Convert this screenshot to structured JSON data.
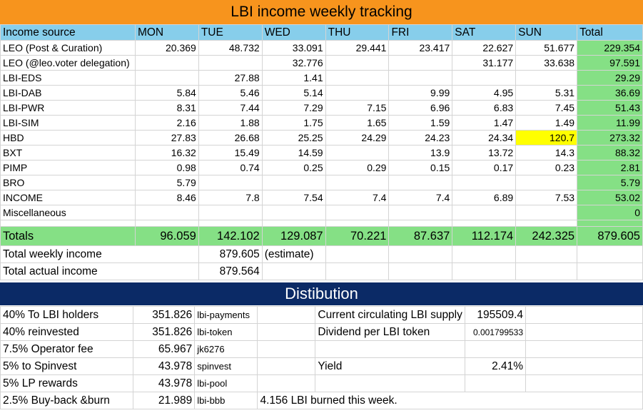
{
  "title": "LBI income weekly tracking",
  "header": [
    "Income source",
    "MON",
    "TUE",
    "WED",
    "THU",
    "FRI",
    "SAT",
    "SUN",
    "Total"
  ],
  "rows": [
    {
      "source": "LEO (Post & Curation)",
      "cells": [
        "20.369",
        "48.732",
        "33.091",
        "29.441",
        "23.417",
        "22.627",
        "51.677"
      ],
      "total": "229.354"
    },
    {
      "source": "LEO (@leo.voter delegation)",
      "cells": [
        "",
        "",
        "32.776",
        "",
        "",
        "31.177",
        "33.638"
      ],
      "total": "97.591"
    },
    {
      "source": "LBI-EDS",
      "cells": [
        "",
        "27.88",
        "1.41",
        "",
        "",
        "",
        ""
      ],
      "total": "29.29"
    },
    {
      "source": "LBI-DAB",
      "cells": [
        "5.84",
        "5.46",
        "5.14",
        "",
        "9.99",
        "4.95",
        "5.31"
      ],
      "total": "36.69"
    },
    {
      "source": "LBI-PWR",
      "cells": [
        "8.31",
        "7.44",
        "7.29",
        "7.15",
        "6.96",
        "6.83",
        "7.45"
      ],
      "total": "51.43"
    },
    {
      "source": "LBI-SIM",
      "cells": [
        "2.16",
        "1.88",
        "1.75",
        "1.65",
        "1.59",
        "1.47",
        "1.49"
      ],
      "total": "11.99"
    },
    {
      "source": "HBD",
      "cells": [
        "27.83",
        "26.68",
        "25.25",
        "24.29",
        "24.23",
        "24.34",
        "120.7"
      ],
      "total": "273.32",
      "highlight_col": 6,
      "highlight_color": "#ffff00"
    },
    {
      "source": "BXT",
      "cells": [
        "16.32",
        "15.49",
        "14.59",
        "",
        "13.9",
        "13.72",
        "14.3"
      ],
      "total": "88.32"
    },
    {
      "source": "PIMP",
      "cells": [
        "0.98",
        "0.74",
        "0.25",
        "0.29",
        "0.15",
        "0.17",
        "0.23"
      ],
      "total": "2.81"
    },
    {
      "source": "BRO",
      "cells": [
        "5.79",
        "",
        "",
        "",
        "",
        "",
        ""
      ],
      "total": "5.79"
    },
    {
      "source": "INCOME",
      "cells": [
        "8.46",
        "7.8",
        "7.54",
        "7.4",
        "7.4",
        "6.89",
        "7.53"
      ],
      "total": "53.02"
    },
    {
      "source": "Miscellaneous",
      "cells": [
        "",
        "",
        "",
        "",
        "",
        "",
        ""
      ],
      "total": "0"
    }
  ],
  "totals": {
    "label": "Totals",
    "cells": [
      "96.059",
      "142.102",
      "129.087",
      "70.221",
      "87.637",
      "112.174",
      "242.325"
    ],
    "total": "879.605"
  },
  "summary": {
    "weekly_label": "Total weekly income",
    "weekly_value": "879.605",
    "weekly_note": "(estimate)",
    "actual_label": "Total actual income",
    "actual_value": "879.564"
  },
  "distribution": {
    "title": "Distibution",
    "rows": [
      {
        "label": "40% To LBI holders",
        "value": "351.826",
        "account": "lbi-payments",
        "extra_label": "Current circulating LBI supply",
        "extra_value": "195509.4"
      },
      {
        "label": "40% reinvested",
        "value": "351.826",
        "account": "lbi-token",
        "extra_label": "Dividend per LBI token",
        "extra_value": "0.001799533"
      },
      {
        "label": "7.5% Operator fee",
        "value": "65.967",
        "account": "jk6276",
        "extra_label": "",
        "extra_value": ""
      },
      {
        "label": "5% to Spinvest",
        "value": "43.978",
        "account": "spinvest",
        "extra_label": "Yield",
        "extra_value": "2.41%"
      },
      {
        "label": "5% LP rewards",
        "value": "43.978",
        "account": "lbi-pool",
        "extra_label": "",
        "extra_value": ""
      },
      {
        "label": "2.5% Buy-back &burn",
        "value": "21.989",
        "account": "lbi-bbb",
        "extra_label": "4.156 LBI burned this week.",
        "extra_value": ""
      }
    ]
  },
  "colors": {
    "title_bg": "#f7941d",
    "header_bg": "#87ceeb",
    "total_bg": "#85e085",
    "highlight": "#ffff00",
    "dist_bg": "#0b2a66"
  }
}
